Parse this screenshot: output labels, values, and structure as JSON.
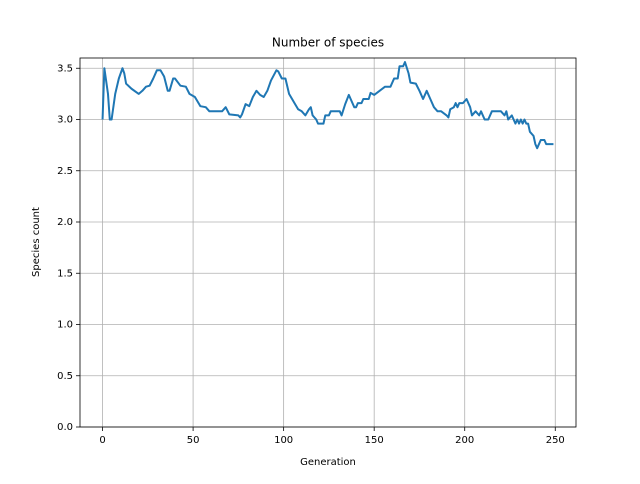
{
  "chart_data": {
    "type": "line",
    "title": "Number of species",
    "xlabel": "Generation",
    "ylabel": "Species count",
    "x": [
      0,
      1,
      3,
      4,
      5,
      7,
      9,
      11,
      12,
      13,
      16,
      20,
      22,
      24,
      26,
      28,
      30,
      32,
      34,
      36,
      37,
      39,
      40,
      43,
      46,
      48,
      51,
      54,
      57,
      59,
      66,
      68,
      70,
      75,
      76,
      77,
      79,
      81,
      83,
      85,
      87,
      89,
      91,
      93,
      96,
      97,
      99,
      101,
      103,
      106,
      108,
      110,
      112,
      114,
      115,
      116,
      118,
      119,
      122,
      123,
      125,
      126,
      131,
      132,
      134,
      136,
      137,
      139,
      140,
      141,
      143,
      144,
      147,
      148,
      150,
      153,
      156,
      159,
      161,
      163,
      164,
      166,
      167,
      169,
      170,
      173,
      175,
      177,
      179,
      181,
      183,
      185,
      187,
      190,
      191,
      192,
      194,
      195,
      196,
      197,
      199,
      201,
      203,
      204,
      206,
      208,
      209,
      211,
      213,
      215,
      220,
      222,
      223,
      224,
      226,
      228,
      229,
      230,
      231,
      232,
      233,
      234,
      235,
      236,
      238,
      239,
      240,
      242,
      244,
      245,
      249
    ],
    "series": [
      {
        "name": "Species count",
        "color": "#1f77b4",
        "values": [
          3.0,
          3.5,
          3.25,
          3.0,
          3.0,
          3.25,
          3.4,
          3.5,
          3.45,
          3.35,
          3.3,
          3.25,
          3.28,
          3.32,
          3.33,
          3.4,
          3.48,
          3.48,
          3.42,
          3.28,
          3.28,
          3.4,
          3.4,
          3.33,
          3.32,
          3.25,
          3.22,
          3.13,
          3.12,
          3.08,
          3.08,
          3.12,
          3.05,
          3.04,
          3.02,
          3.05,
          3.15,
          3.13,
          3.22,
          3.28,
          3.24,
          3.22,
          3.28,
          3.38,
          3.48,
          3.47,
          3.4,
          3.4,
          3.25,
          3.16,
          3.1,
          3.08,
          3.04,
          3.1,
          3.12,
          3.04,
          3.0,
          2.96,
          2.96,
          3.04,
          3.04,
          3.08,
          3.08,
          3.04,
          3.15,
          3.24,
          3.2,
          3.12,
          3.12,
          3.16,
          3.16,
          3.2,
          3.2,
          3.26,
          3.24,
          3.28,
          3.32,
          3.32,
          3.4,
          3.4,
          3.52,
          3.52,
          3.56,
          3.45,
          3.36,
          3.35,
          3.28,
          3.2,
          3.28,
          3.2,
          3.12,
          3.08,
          3.08,
          3.04,
          3.02,
          3.1,
          3.12,
          3.16,
          3.12,
          3.16,
          3.16,
          3.2,
          3.12,
          3.04,
          3.08,
          3.04,
          3.08,
          3.0,
          3.0,
          3.08,
          3.08,
          3.04,
          3.08,
          3.0,
          3.04,
          2.96,
          3.0,
          2.96,
          3.0,
          2.96,
          3.0,
          2.96,
          2.96,
          2.88,
          2.84,
          2.76,
          2.72,
          2.8,
          2.8,
          2.76,
          2.76
        ]
      }
    ],
    "xlim": [
      -12.45,
      261.45
    ],
    "xticks": [
      0,
      50,
      100,
      150,
      200,
      250
    ],
    "ylim": [
      0,
      3.6
    ],
    "yticks": [
      {
        "value": 0,
        "label": "0.0"
      },
      0.5,
      {
        "value": 1,
        "label": "1.0"
      },
      1.5,
      {
        "value": 2,
        "label": "2.0"
      },
      2.5,
      {
        "value": 3,
        "label": "3.0"
      },
      3.5
    ],
    "grid": true
  }
}
